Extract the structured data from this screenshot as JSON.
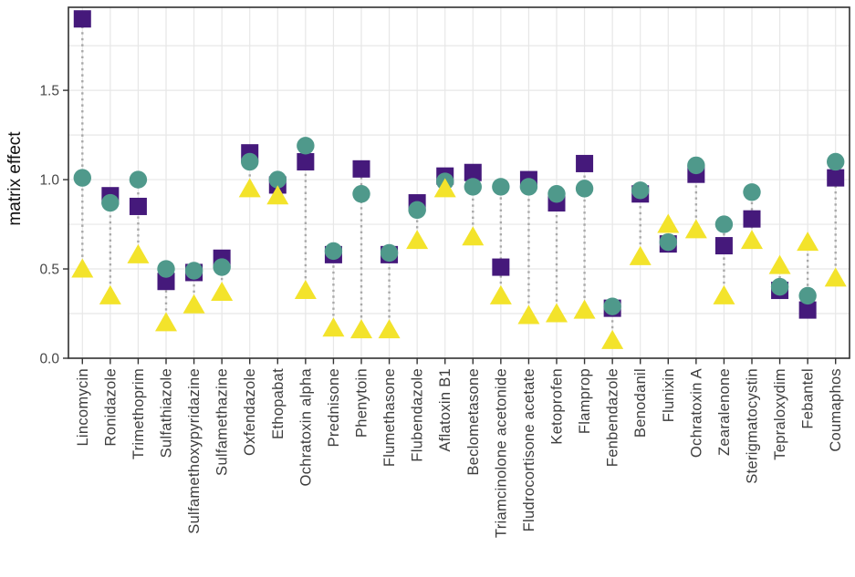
{
  "figure": {
    "title": "",
    "y_axis_title": "matrix effect"
  },
  "chart_data": {
    "type": "scatter",
    "title": "",
    "xlabel": "",
    "ylabel": "matrix effect",
    "ylim": [
      0,
      1.965
    ],
    "yticks": [
      0.0,
      0.5,
      1.0,
      1.5
    ],
    "ytick_labels": [
      "0.0",
      "0.5",
      "1.0",
      "1.5"
    ],
    "minor_ytick_step": 0.25,
    "x_tick_rotation": 90,
    "grid": true,
    "legend_position": "none",
    "categories": [
      "Lincomycin",
      "Ronidazole",
      "Trimethoprim",
      "Sulfathiazole",
      "Sulfamethoxypyridazine",
      "Sulfamethazine",
      "Oxfendazole",
      "Ethopabat",
      "Ochratoxin alpha",
      "Prednisone",
      "Phenytoin",
      "Flumethasone",
      "Flubendazole",
      "Aflatoxin B1",
      "Beclometasone",
      "Triamcinolone acetonide",
      "Fludrocortisone acetate",
      "Ketoprofen",
      "Flamprop",
      "Fenbendazole",
      "Benodanil",
      "Flunixin",
      "Ochratoxin A",
      "Zearalenone",
      "Sterigmatocystin",
      "Tepraloxydim",
      "Febantel",
      "Coumaphos"
    ],
    "series": [
      {
        "name": "square-series",
        "marker": "square",
        "color": "#45197B",
        "values": [
          1.9,
          0.91,
          0.85,
          0.43,
          0.48,
          0.56,
          1.15,
          0.97,
          1.1,
          0.58,
          1.06,
          0.58,
          0.87,
          1.02,
          1.04,
          0.51,
          1.0,
          0.87,
          1.09,
          0.28,
          0.92,
          0.64,
          1.03,
          0.63,
          0.78,
          0.38,
          0.27,
          1.01
        ]
      },
      {
        "name": "circle-series",
        "marker": "circle",
        "color": "#4F998B",
        "values": [
          1.01,
          0.87,
          1.0,
          0.5,
          0.49,
          0.51,
          1.1,
          1.0,
          1.19,
          0.6,
          0.92,
          0.59,
          0.83,
          0.99,
          0.96,
          0.96,
          0.96,
          0.92,
          0.95,
          0.29,
          0.94,
          0.65,
          1.08,
          0.75,
          0.93,
          0.4,
          0.35,
          1.1
        ]
      },
      {
        "name": "triangle-series",
        "marker": "triangle-up",
        "color": "#F3E32B",
        "values": [
          0.5,
          0.35,
          0.58,
          0.2,
          0.3,
          0.37,
          0.95,
          0.91,
          0.38,
          0.17,
          0.16,
          0.16,
          0.66,
          0.95,
          0.68,
          0.35,
          0.24,
          0.25,
          0.27,
          0.1,
          0.57,
          0.75,
          0.72,
          0.35,
          0.66,
          0.52,
          0.65,
          0.45
        ]
      }
    ],
    "connectors": {
      "description": "vertical dotted line joining lowest and highest marker of each category",
      "style": "dotted",
      "color": "#A9A9A9"
    },
    "colors": {
      "panel_background": "#FFFFFF",
      "panel_border": "#303030",
      "gridline": "#E7E7E7",
      "tick_label": "#474747",
      "axis_title": "#101010"
    }
  }
}
